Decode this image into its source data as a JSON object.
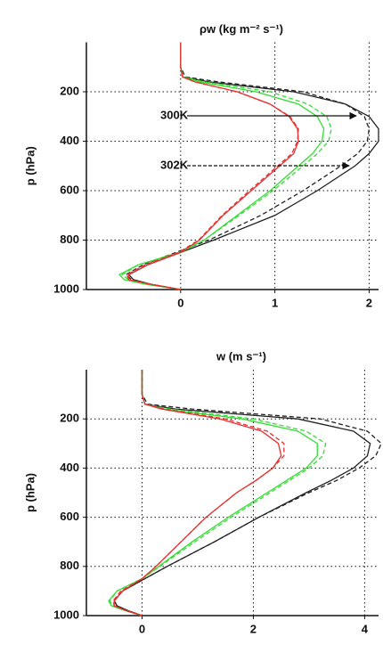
{
  "chart_data": [
    {
      "type": "line",
      "title": "ρw (kg m⁻² s⁻¹)",
      "ylabel": "p (hPa)",
      "y": [
        0,
        100,
        140,
        160,
        200,
        250,
        300,
        350,
        400,
        450,
        500,
        600,
        700,
        800,
        850,
        900,
        940,
        960,
        980,
        1000
      ],
      "series": [
        {
          "color": "#222222",
          "linestyle": "solid",
          "values": [
            0,
            0,
            0.02,
            0.3,
            1.2,
            1.75,
            2.0,
            2.1,
            2.1,
            2.0,
            1.85,
            1.45,
            1.0,
            0.35,
            0.0,
            -0.35,
            -0.55,
            -0.5,
            -0.3,
            0
          ]
        },
        {
          "color": "#222222",
          "linestyle": "dashed",
          "values": [
            0,
            0,
            0.05,
            0.4,
            1.3,
            1.75,
            1.95,
            2.0,
            1.98,
            1.88,
            1.7,
            1.3,
            0.85,
            0.3,
            -0.05,
            -0.4,
            -0.58,
            -0.52,
            -0.3,
            0
          ]
        },
        {
          "color": "#33dd33",
          "linestyle": "solid",
          "values": [
            0,
            0,
            0.02,
            0.2,
            0.8,
            1.25,
            1.45,
            1.52,
            1.5,
            1.4,
            1.25,
            0.95,
            0.6,
            0.25,
            0.0,
            -0.45,
            -0.65,
            -0.6,
            -0.35,
            0
          ]
        },
        {
          "color": "#33dd33",
          "linestyle": "dashed",
          "values": [
            0,
            0,
            0.03,
            0.25,
            0.95,
            1.35,
            1.55,
            1.6,
            1.57,
            1.45,
            1.3,
            0.98,
            0.62,
            0.25,
            -0.02,
            -0.45,
            -0.62,
            -0.55,
            -0.3,
            0
          ]
        },
        {
          "color": "#e83030",
          "linestyle": "solid",
          "values": [
            0,
            0,
            0.02,
            0.15,
            0.6,
            0.95,
            1.15,
            1.24,
            1.25,
            1.2,
            1.05,
            0.75,
            0.45,
            0.2,
            0.0,
            -0.35,
            -0.55,
            -0.55,
            -0.3,
            0
          ]
        },
        {
          "color": "#e83030",
          "linestyle": "dashed",
          "values": [
            0,
            0,
            0.02,
            0.15,
            0.6,
            0.95,
            1.16,
            1.25,
            1.24,
            1.18,
            1.03,
            0.73,
            0.44,
            0.19,
            -0.02,
            -0.38,
            -0.57,
            -0.55,
            -0.3,
            0
          ]
        }
      ],
      "xlim": [
        -1,
        2.1
      ],
      "xticks": [
        0,
        1,
        2
      ],
      "ylim": [
        1000,
        0
      ],
      "yticks": [
        200,
        400,
        600,
        800,
        1000
      ],
      "grid": true,
      "annotations": [
        "300K",
        "302K"
      ]
    },
    {
      "type": "line",
      "title": "w (m s⁻¹)",
      "ylabel": "p (hPa)",
      "y": [
        0,
        100,
        140,
        160,
        200,
        250,
        300,
        350,
        400,
        450,
        500,
        600,
        700,
        800,
        850,
        900,
        940,
        960,
        980,
        1000
      ],
      "series": [
        {
          "color": "#222222",
          "linestyle": "solid",
          "values": [
            0,
            0,
            0.05,
            0.6,
            2.8,
            3.8,
            4.1,
            4.05,
            3.8,
            3.4,
            2.95,
            2.1,
            1.3,
            0.45,
            0.05,
            -0.35,
            -0.5,
            -0.45,
            -0.25,
            0
          ]
        },
        {
          "color": "#222222",
          "linestyle": "dashed",
          "values": [
            0,
            0,
            0.1,
            0.9,
            3.2,
            4.05,
            4.3,
            4.2,
            3.9,
            3.5,
            3.0,
            2.1,
            1.3,
            0.45,
            0.05,
            -0.35,
            -0.5,
            -0.45,
            -0.25,
            0
          ]
        },
        {
          "color": "#33dd33",
          "linestyle": "solid",
          "values": [
            0,
            0,
            0.05,
            0.4,
            1.8,
            2.8,
            3.15,
            3.15,
            2.95,
            2.6,
            2.25,
            1.55,
            0.9,
            0.3,
            0,
            -0.45,
            -0.6,
            -0.55,
            -0.3,
            0
          ]
        },
        {
          "color": "#33dd33",
          "linestyle": "dashed",
          "values": [
            0,
            0,
            0.05,
            0.5,
            2.0,
            2.95,
            3.3,
            3.25,
            3.0,
            2.65,
            2.3,
            1.6,
            0.95,
            0.32,
            0,
            -0.45,
            -0.58,
            -0.52,
            -0.28,
            0
          ]
        },
        {
          "color": "#e83030",
          "linestyle": "solid",
          "values": [
            0,
            0,
            0.05,
            0.35,
            1.4,
            2.15,
            2.45,
            2.5,
            2.35,
            2.05,
            1.7,
            1.15,
            0.7,
            0.25,
            0,
            -0.35,
            -0.5,
            -0.5,
            -0.28,
            0
          ]
        },
        {
          "color": "#e83030",
          "linestyle": "dashed",
          "values": [
            0,
            0,
            0.05,
            0.4,
            1.5,
            2.25,
            2.55,
            2.55,
            2.35,
            2.05,
            1.7,
            1.15,
            0.7,
            0.25,
            0,
            -0.38,
            -0.52,
            -0.5,
            -0.28,
            0
          ]
        }
      ],
      "xlim": [
        -1,
        4.25
      ],
      "xticks": [
        0,
        2,
        4
      ],
      "ylim": [
        1000,
        0
      ],
      "yticks": [
        200,
        400,
        600,
        800,
        1000
      ],
      "grid": true
    }
  ]
}
